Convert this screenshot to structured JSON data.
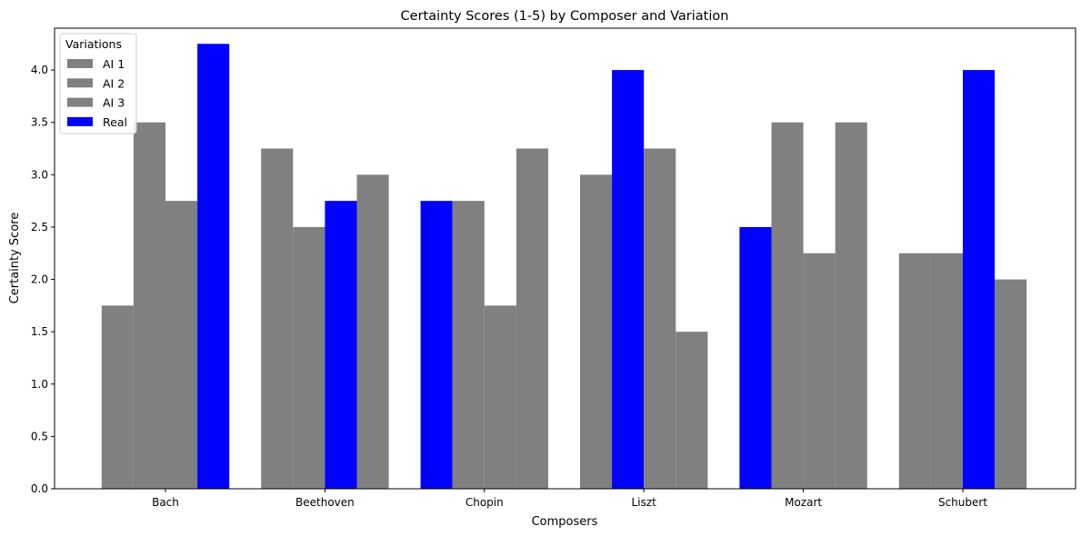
{
  "chart_data": {
    "type": "bar",
    "title": "Certainty Scores (1-5) by Composer and Variation",
    "xlabel": "Composers",
    "ylabel": "Certainty Score",
    "categories": [
      "Bach",
      "Beethoven",
      "Chopin",
      "Liszt",
      "Mozart",
      "Schubert"
    ],
    "ylim": [
      0,
      4.4
    ],
    "yticks": [
      0.0,
      0.5,
      1.0,
      1.5,
      2.0,
      2.5,
      3.0,
      3.5,
      4.0
    ],
    "ytick_labels": [
      "0.0",
      "0.5",
      "1.0",
      "1.5",
      "2.0",
      "2.5",
      "3.0",
      "3.5",
      "4.0"
    ],
    "bars_per_category": [
      [
        {
          "value": 1.75,
          "color": "#808080"
        },
        {
          "value": 3.5,
          "color": "#808080"
        },
        {
          "value": 2.75,
          "color": "#808080"
        },
        {
          "value": 4.25,
          "color": "#0000ff"
        }
      ],
      [
        {
          "value": 3.25,
          "color": "#808080"
        },
        {
          "value": 2.5,
          "color": "#808080"
        },
        {
          "value": 2.75,
          "color": "#0000ff"
        },
        {
          "value": 3.0,
          "color": "#808080"
        }
      ],
      [
        {
          "value": 2.75,
          "color": "#0000ff"
        },
        {
          "value": 2.75,
          "color": "#808080"
        },
        {
          "value": 1.75,
          "color": "#808080"
        },
        {
          "value": 3.25,
          "color": "#808080"
        }
      ],
      [
        {
          "value": 3.0,
          "color": "#808080"
        },
        {
          "value": 4.0,
          "color": "#0000ff"
        },
        {
          "value": 3.25,
          "color": "#808080"
        },
        {
          "value": 1.5,
          "color": "#808080"
        }
      ],
      [
        {
          "value": 2.5,
          "color": "#0000ff"
        },
        {
          "value": 3.5,
          "color": "#808080"
        },
        {
          "value": 2.25,
          "color": "#808080"
        },
        {
          "value": 3.5,
          "color": "#808080"
        }
      ],
      [
        {
          "value": 2.25,
          "color": "#808080"
        },
        {
          "value": 2.25,
          "color": "#808080"
        },
        {
          "value": 4.0,
          "color": "#0000ff"
        },
        {
          "value": 2.0,
          "color": "#808080"
        }
      ]
    ],
    "legend": {
      "title": "Variations",
      "placement": "top-left",
      "entries": [
        {
          "name": "AI 1",
          "color": "#808080"
        },
        {
          "name": "AI 2",
          "color": "#808080"
        },
        {
          "name": "AI 3",
          "color": "#808080"
        },
        {
          "name": "Real",
          "color": "#0000ff"
        }
      ]
    },
    "grid": false
  }
}
